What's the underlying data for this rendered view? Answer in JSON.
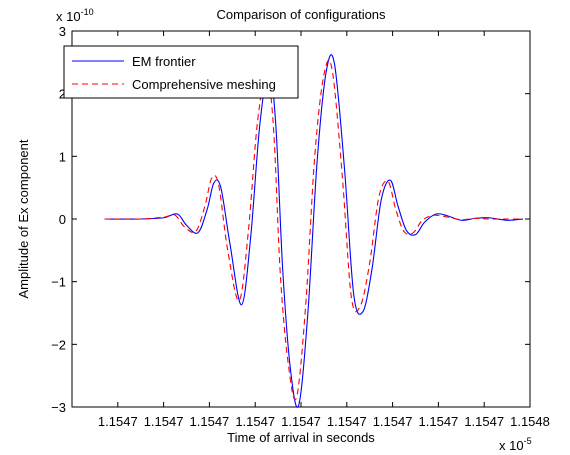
{
  "chart_data": {
    "type": "line",
    "title": "Comparison of configurations",
    "xlabel": "Time of arrival in seconds",
    "ylabel": "Amplitude of Ex component",
    "x_multiplier_label": "x 10",
    "x_multiplier_exp": "-5",
    "y_multiplier_label": "x 10",
    "y_multiplier_exp": "-10",
    "xlim": [
      0,
      1
    ],
    "ylim": [
      -3,
      3
    ],
    "x_ticks": [
      {
        "pos": 0.1,
        "label": "1.1547"
      },
      {
        "pos": 0.2,
        "label": "1.1547"
      },
      {
        "pos": 0.3,
        "label": "1.1547"
      },
      {
        "pos": 0.4,
        "label": "1.1547"
      },
      {
        "pos": 0.5,
        "label": "1.1547"
      },
      {
        "pos": 0.6,
        "label": "1.1547"
      },
      {
        "pos": 0.7,
        "label": "1.1547"
      },
      {
        "pos": 0.8,
        "label": "1.1547"
      },
      {
        "pos": 0.9,
        "label": "1.1547"
      },
      {
        "pos": 1.0,
        "label": "1.1548"
      }
    ],
    "y_ticks": [
      {
        "val": -3,
        "label": "−3"
      },
      {
        "val": -2,
        "label": "−2"
      },
      {
        "val": -1,
        "label": "−1"
      },
      {
        "val": 0,
        "label": "0"
      },
      {
        "val": 1,
        "label": "1"
      },
      {
        "val": 2,
        "label": "2"
      },
      {
        "val": 3,
        "label": "3"
      }
    ],
    "legend_position": "top-left",
    "grid": false,
    "series": [
      {
        "name": "EM frontier",
        "color": "#0000ff",
        "style": "solid",
        "x": [
          0.071,
          0.15,
          0.2,
          0.23,
          0.25,
          0.275,
          0.295,
          0.31,
          0.325,
          0.345,
          0.37,
          0.39,
          0.41,
          0.43,
          0.445,
          0.46,
          0.477,
          0.495,
          0.515,
          0.535,
          0.555,
          0.573,
          0.595,
          0.615,
          0.635,
          0.655,
          0.675,
          0.695,
          0.712,
          0.73,
          0.75,
          0.77,
          0.795,
          0.82,
          0.85,
          0.88,
          0.91,
          0.95,
          0.985
        ],
        "y": [
          0.0,
          0.0,
          0.02,
          0.08,
          -0.1,
          -0.22,
          0.15,
          0.58,
          0.5,
          -0.4,
          -1.37,
          -0.3,
          1.5,
          2.38,
          1.5,
          -0.8,
          -2.4,
          -2.97,
          -1.5,
          0.9,
          2.35,
          2.48,
          0.8,
          -1.2,
          -1.48,
          -0.8,
          0.3,
          0.62,
          0.2,
          -0.18,
          -0.25,
          -0.05,
          0.08,
          0.05,
          -0.02,
          0.01,
          0.02,
          -0.02,
          0.0
        ]
      },
      {
        "name": "Comprehensive meshing",
        "color": "#ff0000",
        "style": "dashed",
        "x": [
          0.071,
          0.15,
          0.2,
          0.225,
          0.245,
          0.27,
          0.29,
          0.305,
          0.32,
          0.34,
          0.365,
          0.385,
          0.405,
          0.425,
          0.44,
          0.455,
          0.472,
          0.49,
          0.51,
          0.53,
          0.55,
          0.568,
          0.59,
          0.61,
          0.63,
          0.65,
          0.67,
          0.69,
          0.707,
          0.725,
          0.745,
          0.765,
          0.79,
          0.82,
          0.85,
          0.88,
          0.91,
          0.95,
          0.985
        ],
        "y": [
          0.0,
          0.0,
          0.03,
          0.06,
          -0.12,
          -0.2,
          0.2,
          0.65,
          0.55,
          -0.5,
          -1.3,
          -0.2,
          1.55,
          2.3,
          1.45,
          -0.9,
          -2.3,
          -2.85,
          -1.4,
          1.0,
          2.3,
          2.38,
          0.7,
          -1.25,
          -1.38,
          -0.7,
          0.35,
          0.6,
          0.15,
          -0.2,
          -0.22,
          -0.02,
          0.06,
          0.03,
          -0.01,
          0.01,
          0.0,
          0.0,
          0.0
        ]
      }
    ]
  }
}
